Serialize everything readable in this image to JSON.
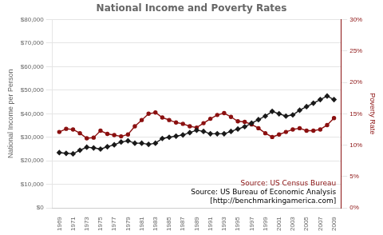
{
  "chart_data": {
    "type": "line",
    "title": "National Income and Poverty Rates",
    "x": [
      1969,
      1970,
      1971,
      1972,
      1973,
      1974,
      1975,
      1976,
      1977,
      1978,
      1979,
      1980,
      1981,
      1982,
      1983,
      1984,
      1985,
      1986,
      1987,
      1988,
      1989,
      1990,
      1991,
      1992,
      1993,
      1994,
      1995,
      1996,
      1997,
      1998,
      1999,
      2000,
      2001,
      2002,
      2003,
      2004,
      2005,
      2006,
      2007,
      2008,
      2009
    ],
    "series": [
      {
        "color": "#1a1a1a",
        "marker": "diamond",
        "line_style": "solid",
        "values": [
          23500,
          23200,
          23000,
          24500,
          25800,
          25500,
          25000,
          26000,
          26800,
          28000,
          28500,
          27500,
          27500,
          27000,
          27500,
          29500,
          30000,
          30500,
          31000,
          32000,
          33000,
          32500,
          31500,
          31500,
          31500,
          32500,
          33500,
          34500,
          36000,
          37500,
          39000,
          41000,
          40000,
          39000,
          39500,
          41500,
          43000,
          44500,
          46000,
          47500,
          46000
        ]
      },
      {
        "color": "#8B1010",
        "marker": "circle",
        "line_style": "solid",
        "axis": "y2",
        "values": [
          12.1,
          12.6,
          12.5,
          11.9,
          11.1,
          11.2,
          12.3,
          11.8,
          11.6,
          11.4,
          11.7,
          13.0,
          14.0,
          15.0,
          15.2,
          14.4,
          14.0,
          13.6,
          13.4,
          13.0,
          12.8,
          13.5,
          14.2,
          14.8,
          15.1,
          14.5,
          13.8,
          13.7,
          13.3,
          12.7,
          11.9,
          11.3,
          11.7,
          12.1,
          12.5,
          12.7,
          12.3,
          12.3,
          12.5,
          13.2,
          14.3
        ]
      }
    ],
    "xlim": [
      1968,
      2010
    ],
    "xticks": [
      1969,
      1971,
      1973,
      1975,
      1977,
      1979,
      1981,
      1983,
      1985,
      1987,
      1989,
      1991,
      1993,
      1995,
      1997,
      1999,
      2001,
      2003,
      2005,
      2007,
      2009
    ],
    "ylabel": "National Income per Person",
    "ylim": [
      0,
      80000
    ],
    "yticks": [
      {
        "value": 0,
        "label": "$0"
      },
      {
        "value": 10000,
        "label": "$10,000"
      },
      {
        "value": 20000,
        "label": "$20,000"
      },
      {
        "value": 30000,
        "label": "$30,000"
      },
      {
        "value": 40000,
        "label": "$40,000"
      },
      {
        "value": 50000,
        "label": "$50,000"
      },
      {
        "value": 60000,
        "label": "$60,000"
      },
      {
        "value": 70000,
        "label": "$70,000"
      },
      {
        "value": 80000,
        "label": "$80,000"
      }
    ],
    "y2label": "Poverty Rate",
    "y2lim": [
      0,
      30
    ],
    "y2ticks": [
      {
        "value": 0,
        "label": "0%"
      },
      {
        "value": 5,
        "label": "5%"
      },
      {
        "value": 10,
        "label": "10%"
      },
      {
        "value": 15,
        "label": "15%"
      },
      {
        "value": 20,
        "label": "20%"
      },
      {
        "value": 25,
        "label": "25%"
      },
      {
        "value": 30,
        "label": "30%"
      }
    ],
    "grid": true,
    "annotations": [
      {
        "text": "Source: US Census Bureau",
        "color": "#8B1010"
      },
      {
        "text": "Source: US Bureau of Economic Analysis",
        "color": "#000000"
      },
      {
        "text": "[http://benchmarkingamerica.com]",
        "color": "#000000"
      }
    ]
  }
}
